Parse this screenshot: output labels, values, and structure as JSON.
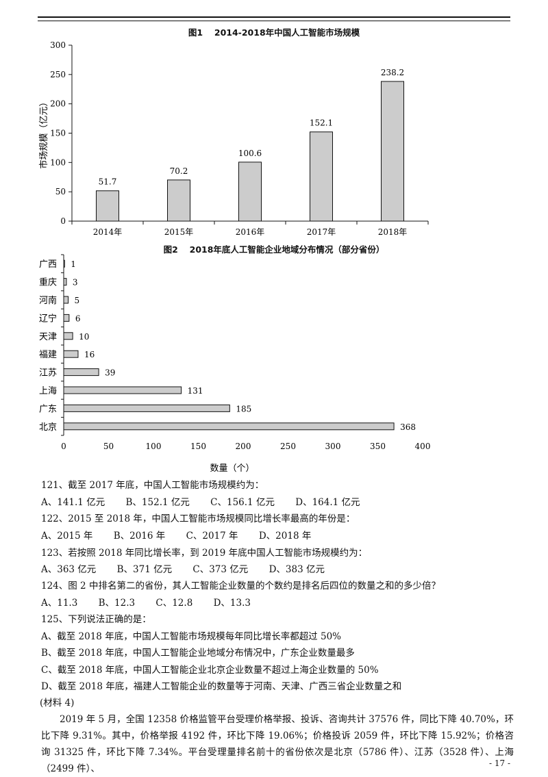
{
  "figure1": {
    "title": "图1　 2014-2018年中国人工智能市场规模",
    "ylabel": "市场规模（亿元）"
  },
  "figure2": {
    "title": "图2　 2018年底人工智能企业地域分布情况（部分省份）",
    "xlabel": "数量（个）"
  },
  "chart_data": [
    {
      "type": "bar",
      "orientation": "vertical",
      "title": "图1　 2014-2018年中国人工智能市场规模",
      "categories": [
        "2014年",
        "2015年",
        "2016年",
        "2017年",
        "2018年"
      ],
      "values": [
        51.7,
        70.2,
        100.6,
        152.1,
        238.2
      ],
      "data_labels": [
        "51.7",
        "70.2",
        "100.6",
        "152.1",
        "238.2"
      ],
      "xlabel": "",
      "ylabel": "市场规模（亿元）",
      "ylim": [
        0,
        300
      ],
      "yticks": [
        "0",
        "50",
        "100",
        "150",
        "200",
        "250",
        "300"
      ],
      "bar_color": "#cccccc",
      "grid": false
    },
    {
      "type": "bar",
      "orientation": "horizontal",
      "title": "图2　 2018年底人工智能企业地域分布情况（部分省份）",
      "categories": [
        "广西",
        "重庆",
        "河南",
        "辽宁",
        "天津",
        "福建",
        "江苏",
        "上海",
        "广东",
        "北京"
      ],
      "values": [
        1,
        3,
        5,
        6,
        10,
        16,
        39,
        131,
        185,
        368
      ],
      "data_labels": [
        "1",
        "3",
        "5",
        "6",
        "10",
        "16",
        "39",
        "131",
        "185",
        "368"
      ],
      "xlabel": "数量（个）",
      "ylabel": "",
      "xlim": [
        0,
        400
      ],
      "xticks": [
        "0",
        "50",
        "100",
        "150",
        "200",
        "250",
        "300",
        "350",
        "400"
      ],
      "bar_color": "#cccccc",
      "grid": false
    }
  ],
  "questions": [
    {
      "stem": "121、截至 2017 年底，中国人工智能市场规模约为：",
      "options": [
        "A、141.1 亿元",
        "B、152.1 亿元",
        "C、156.1 亿元",
        "D、164.1 亿元"
      ]
    },
    {
      "stem": "122、2015 至 2018 年，中国人工智能市场规模同比增长率最高的年份是：",
      "options": [
        "A、2015 年",
        "B、2016 年",
        "C、2017 年",
        "D、2018 年"
      ]
    },
    {
      "stem": "123、若按照 2018 年同比增长率，到 2019 年底中国人工智能市场规模约为：",
      "options": [
        "A、363 亿元",
        "B、371 亿元",
        "C、373 亿元",
        "D、383 亿元"
      ]
    },
    {
      "stem": "124、图 2 中排名第二的省份，其人工智能企业数量的个数约是排名后四位的数量之和的多少倍？",
      "options": [
        "A、11.3",
        "B、12.3",
        "C、12.8",
        "D、13.3"
      ]
    },
    {
      "stem": "125、下列说法正确的是：",
      "options": [
        "A、截至 2018 年底，中国人工智能市场规模每年同比增长率都超过 50%",
        "B、截至 2018 年底，中国人工智能企业地域分布情况中，广东企业数量最多",
        "C、截至 2018 年底，中国人工智能企业北京企业数量不超过上海企业数量的 50%",
        "D、截至 2018 年底，福建人工智能企业的数量等于河南、天津、广西三省企业数量之和"
      ]
    }
  ],
  "material": {
    "label": "(材料 4)",
    "paragraph": "2019 年 5 月，全国 12358 价格监管平台受理价格举报、投诉、咨询共计 37576 件，同比下降 40.70%，环比下降 9.31%。其中，价格举报 4192 件，环比下降 19.06%；价格投诉 2059 件，环比下降 15.92%；价格咨询 31325 件，环比下降 7.34%。平台受理量排名前十的省份依次是北京（5786 件）、江苏（3528 件）、上海（2499 件）、"
  },
  "page_number": "- 17 -"
}
